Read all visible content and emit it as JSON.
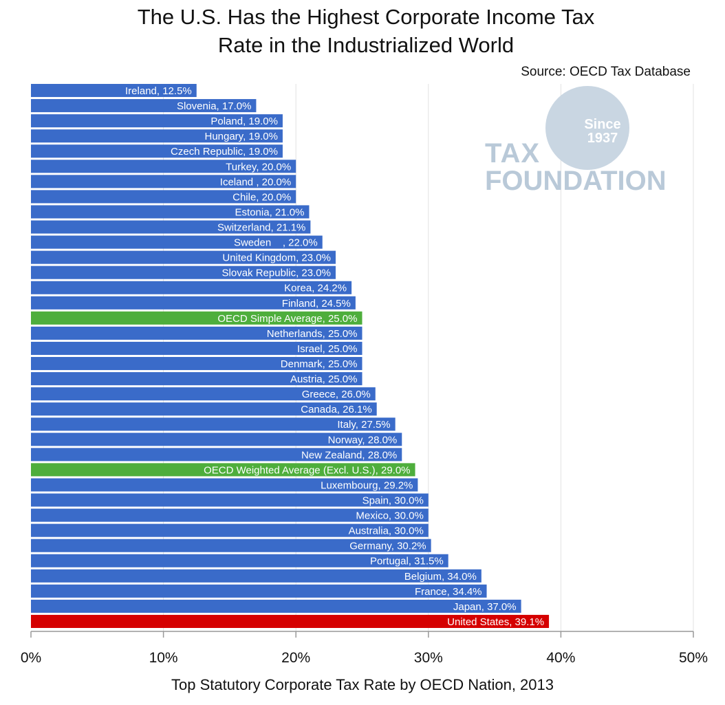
{
  "title_line1": "The U.S. Has the Highest Corporate Income Tax",
  "title_line2": "Rate in the Industrialized World",
  "source": "Source: OECD Tax Database",
  "logo": {
    "since": "Since",
    "year": "1937",
    "line1": "TAX",
    "line2": "FOUNDATION"
  },
  "colors": {
    "country": "#3a6bc9",
    "average": "#4eae3c",
    "us": "#d50000"
  },
  "chart_data": {
    "type": "bar",
    "orientation": "horizontal",
    "xlabel": "Top Statutory Corporate Tax Rate by OECD Nation, 2013",
    "xlim": [
      0,
      50
    ],
    "xticks": [
      "0%",
      "10%",
      "20%",
      "30%",
      "40%",
      "50%"
    ],
    "grid": true,
    "bars": [
      {
        "label": "Ireland, 12.5%",
        "value": 12.5,
        "kind": "country"
      },
      {
        "label": "Slovenia, 17.0%",
        "value": 17.0,
        "kind": "country"
      },
      {
        "label": "Poland, 19.0%",
        "value": 19.0,
        "kind": "country"
      },
      {
        "label": "Hungary, 19.0%",
        "value": 19.0,
        "kind": "country"
      },
      {
        "label": "Czech Republic, 19.0%",
        "value": 19.0,
        "kind": "country"
      },
      {
        "label": "Turkey, 20.0%",
        "value": 20.0,
        "kind": "country"
      },
      {
        "label": "Iceland , 20.0%",
        "value": 20.0,
        "kind": "country"
      },
      {
        "label": "Chile, 20.0%",
        "value": 20.0,
        "kind": "country"
      },
      {
        "label": "Estonia, 21.0%",
        "value": 21.0,
        "kind": "country"
      },
      {
        "label": "Switzerland, 21.1%",
        "value": 21.1,
        "kind": "country"
      },
      {
        "label": "Sweden    , 22.0%",
        "value": 22.0,
        "kind": "country"
      },
      {
        "label": "United Kingdom, 23.0%",
        "value": 23.0,
        "kind": "country"
      },
      {
        "label": "Slovak Republic, 23.0%",
        "value": 23.0,
        "kind": "country"
      },
      {
        "label": "Korea, 24.2%",
        "value": 24.2,
        "kind": "country"
      },
      {
        "label": "Finland, 24.5%",
        "value": 24.5,
        "kind": "country"
      },
      {
        "label": "OECD Simple Average, 25.0%",
        "value": 25.0,
        "kind": "average"
      },
      {
        "label": "Netherlands, 25.0%",
        "value": 25.0,
        "kind": "country"
      },
      {
        "label": "Israel, 25.0%",
        "value": 25.0,
        "kind": "country"
      },
      {
        "label": "Denmark, 25.0%",
        "value": 25.0,
        "kind": "country"
      },
      {
        "label": "Austria, 25.0%",
        "value": 25.0,
        "kind": "country"
      },
      {
        "label": "Greece, 26.0%",
        "value": 26.0,
        "kind": "country"
      },
      {
        "label": "Canada, 26.1%",
        "value": 26.1,
        "kind": "country"
      },
      {
        "label": "Italy, 27.5%",
        "value": 27.5,
        "kind": "country"
      },
      {
        "label": "Norway, 28.0%",
        "value": 28.0,
        "kind": "country"
      },
      {
        "label": "New Zealand, 28.0%",
        "value": 28.0,
        "kind": "country"
      },
      {
        "label": "OECD Weighted Average (Excl. U.S.), 29.0%",
        "value": 29.0,
        "kind": "average"
      },
      {
        "label": "Luxembourg, 29.2%",
        "value": 29.2,
        "kind": "country"
      },
      {
        "label": "Spain, 30.0%",
        "value": 30.0,
        "kind": "country"
      },
      {
        "label": "Mexico, 30.0%",
        "value": 30.0,
        "kind": "country"
      },
      {
        "label": "Australia, 30.0%",
        "value": 30.0,
        "kind": "country"
      },
      {
        "label": "Germany, 30.2%",
        "value": 30.2,
        "kind": "country"
      },
      {
        "label": "Portugal, 31.5%",
        "value": 31.5,
        "kind": "country"
      },
      {
        "label": "Belgium, 34.0%",
        "value": 34.0,
        "kind": "country"
      },
      {
        "label": "France, 34.4%",
        "value": 34.4,
        "kind": "country"
      },
      {
        "label": "Japan, 37.0%",
        "value": 37.0,
        "kind": "country"
      },
      {
        "label": "United States, 39.1%",
        "value": 39.1,
        "kind": "us"
      }
    ]
  }
}
